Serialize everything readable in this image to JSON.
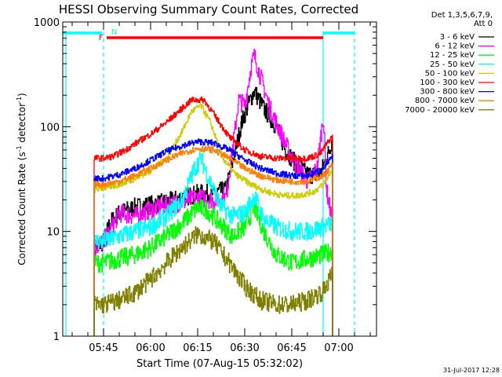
{
  "chart_data": {
    "type": "line",
    "title": "HESSI Observing Summary Count Rates, Corrected",
    "xlabel": "Start Time (07-Aug-15 05:32:02)",
    "ylabel_main": "Corrected Count Rate (s",
    "ylabel_sup1": "-1",
    "ylabel_mid": " detector",
    "ylabel_sup2": "-1",
    "ylabel_end": ")",
    "ylim": [
      1,
      1000
    ],
    "yscale": "log",
    "xlim": [
      "05:32",
      "07:12"
    ],
    "x_ticks": [
      "05:45",
      "06:00",
      "06:15",
      "06:30",
      "06:45",
      "07:00"
    ],
    "y_ticks": [
      "1",
      "10",
      "100",
      "1000"
    ],
    "legend_header": [
      "Det 1,3,5,6,7,9,",
      "Att 0"
    ],
    "timestamp": "31-Jul-2017 12:28",
    "flags": [
      {
        "label": "N",
        "color": "#00ffff",
        "segments": [
          [
            "05:32",
            "05:44:30"
          ],
          [
            "06:55",
            "07:05"
          ]
        ]
      },
      {
        "label": "F",
        "color": "#ff0000",
        "segments": [
          [
            "05:46",
            "06:55"
          ]
        ]
      }
    ],
    "vlines": [
      {
        "x": "05:33",
        "color": "#00ffff",
        "style": "solid"
      },
      {
        "x": "05:45",
        "color": "#00ffff",
        "style": "dashed"
      },
      {
        "x": "06:55",
        "color": "#00ffff",
        "style": "solid"
      },
      {
        "x": "07:05",
        "color": "#00ffff",
        "style": "dashed"
      }
    ],
    "time_range": [
      "05:42",
      "06:58"
    ],
    "series": [
      {
        "name": "3 - 6 keV",
        "color": "#000000",
        "points": [
          [
            "05:42",
            7
          ],
          [
            "05:45",
            8
          ],
          [
            "05:47",
            12
          ],
          [
            "05:50",
            15
          ],
          [
            "05:55",
            17
          ],
          [
            "06:00",
            18
          ],
          [
            "06:05",
            19
          ],
          [
            "06:10",
            21
          ],
          [
            "06:15",
            23
          ],
          [
            "06:20",
            23
          ],
          [
            "06:24",
            25
          ],
          [
            "06:27",
            60
          ],
          [
            "06:29",
            110
          ],
          [
            "06:31",
            160
          ],
          [
            "06:33",
            220
          ],
          [
            "06:36",
            150
          ],
          [
            "06:40",
            100
          ],
          [
            "06:43",
            60
          ],
          [
            "06:46",
            45
          ],
          [
            "06:50",
            35
          ],
          [
            "06:54",
            35
          ],
          [
            "06:57",
            60
          ],
          [
            "06:58",
            80
          ]
        ]
      },
      {
        "name": "6 - 12 keV",
        "color": "#ff00ff",
        "points": [
          [
            "05:42",
            7
          ],
          [
            "05:45",
            8
          ],
          [
            "05:47",
            10
          ],
          [
            "05:50",
            15
          ],
          [
            "05:55",
            14
          ],
          [
            "06:00",
            16
          ],
          [
            "06:05",
            18
          ],
          [
            "06:10",
            19
          ],
          [
            "06:15",
            21
          ],
          [
            "06:20",
            20
          ],
          [
            "06:24",
            21
          ],
          [
            "06:27",
            100
          ],
          [
            "06:28",
            180
          ],
          [
            "06:30",
            160
          ],
          [
            "06:32",
            380
          ],
          [
            "06:33",
            480
          ],
          [
            "06:35",
            300
          ],
          [
            "06:38",
            150
          ],
          [
            "06:42",
            80
          ],
          [
            "06:45",
            50
          ],
          [
            "06:50",
            30
          ],
          [
            "06:53",
            40
          ],
          [
            "06:55",
            130
          ],
          [
            "06:56",
            25
          ],
          [
            "06:58",
            12
          ]
        ]
      },
      {
        "name": "12 - 25 keV",
        "color": "#00ff00",
        "points": [
          [
            "05:42",
            5
          ],
          [
            "05:45",
            5
          ],
          [
            "05:50",
            5.5
          ],
          [
            "05:55",
            6
          ],
          [
            "06:00",
            7
          ],
          [
            "06:05",
            9
          ],
          [
            "06:10",
            12
          ],
          [
            "06:15",
            17
          ],
          [
            "06:18",
            16
          ],
          [
            "06:22",
            12
          ],
          [
            "06:26",
            9
          ],
          [
            "06:30",
            11
          ],
          [
            "06:33",
            17
          ],
          [
            "06:36",
            10
          ],
          [
            "06:40",
            6
          ],
          [
            "06:45",
            5
          ],
          [
            "06:50",
            5.5
          ],
          [
            "06:55",
            6
          ],
          [
            "06:58",
            6.5
          ]
        ]
      },
      {
        "name": "25 - 50 keV",
        "color": "#00ffff",
        "points": [
          [
            "05:42",
            8
          ],
          [
            "05:45",
            8
          ],
          [
            "05:50",
            9
          ],
          [
            "05:55",
            10
          ],
          [
            "06:00",
            11
          ],
          [
            "06:05",
            14
          ],
          [
            "06:10",
            20
          ],
          [
            "06:14",
            40
          ],
          [
            "06:16",
            50
          ],
          [
            "06:18",
            35
          ],
          [
            "06:22",
            18
          ],
          [
            "06:26",
            14
          ],
          [
            "06:30",
            15
          ],
          [
            "06:33",
            22
          ],
          [
            "06:36",
            13
          ],
          [
            "06:40",
            11
          ],
          [
            "06:45",
            10
          ],
          [
            "06:50",
            10
          ],
          [
            "06:55",
            11
          ],
          [
            "06:58",
            12
          ]
        ]
      },
      {
        "name": "50 - 100 keV",
        "color": "#cccc00",
        "points": [
          [
            "05:42",
            25
          ],
          [
            "05:45",
            26
          ],
          [
            "05:50",
            28
          ],
          [
            "05:55",
            32
          ],
          [
            "06:00",
            38
          ],
          [
            "06:05",
            50
          ],
          [
            "06:10",
            90
          ],
          [
            "06:13",
            140
          ],
          [
            "06:16",
            160
          ],
          [
            "06:19",
            110
          ],
          [
            "06:23",
            50
          ],
          [
            "06:27",
            35
          ],
          [
            "06:32",
            28
          ],
          [
            "06:37",
            24
          ],
          [
            "06:42",
            22
          ],
          [
            "06:47",
            22
          ],
          [
            "06:52",
            24
          ],
          [
            "06:55",
            28
          ],
          [
            "06:58",
            40
          ]
        ]
      },
      {
        "name": "100 - 300 keV",
        "color": "#ff0000",
        "points": [
          [
            "05:42",
            50
          ],
          [
            "05:45",
            50
          ],
          [
            "05:48",
            52
          ],
          [
            "05:52",
            60
          ],
          [
            "05:56",
            72
          ],
          [
            "06:00",
            85
          ],
          [
            "06:05",
            110
          ],
          [
            "06:10",
            150
          ],
          [
            "06:13",
            180
          ],
          [
            "06:17",
            180
          ],
          [
            "06:21",
            120
          ],
          [
            "06:25",
            80
          ],
          [
            "06:30",
            60
          ],
          [
            "06:35",
            52
          ],
          [
            "06:40",
            50
          ],
          [
            "06:45",
            50
          ],
          [
            "06:50",
            50
          ],
          [
            "06:54",
            55
          ],
          [
            "06:57",
            75
          ],
          [
            "06:58",
            80
          ]
        ]
      },
      {
        "name": "300 - 800 keV",
        "color": "#0000ff",
        "points": [
          [
            "05:42",
            32
          ],
          [
            "05:45",
            32
          ],
          [
            "05:50",
            35
          ],
          [
            "05:55",
            40
          ],
          [
            "06:00",
            48
          ],
          [
            "06:05",
            58
          ],
          [
            "06:10",
            66
          ],
          [
            "06:15",
            72
          ],
          [
            "06:20",
            70
          ],
          [
            "06:25",
            60
          ],
          [
            "06:30",
            48
          ],
          [
            "06:35",
            40
          ],
          [
            "06:40",
            36
          ],
          [
            "06:45",
            34
          ],
          [
            "06:50",
            34
          ],
          [
            "06:55",
            40
          ],
          [
            "06:58",
            52
          ]
        ]
      },
      {
        "name": "800 - 7000 keV",
        "color": "#ff8000",
        "points": [
          [
            "05:42",
            28
          ],
          [
            "05:45",
            28
          ],
          [
            "05:50",
            30
          ],
          [
            "05:55",
            34
          ],
          [
            "06:00",
            40
          ],
          [
            "06:05",
            48
          ],
          [
            "06:10",
            56
          ],
          [
            "06:15",
            62
          ],
          [
            "06:20",
            60
          ],
          [
            "06:25",
            50
          ],
          [
            "06:30",
            40
          ],
          [
            "06:35",
            34
          ],
          [
            "06:40",
            31
          ],
          [
            "06:45",
            30
          ],
          [
            "06:50",
            30
          ],
          [
            "06:55",
            34
          ],
          [
            "06:58",
            44
          ]
        ]
      },
      {
        "name": "7000 - 20000 keV",
        "color": "#808000",
        "points": [
          [
            "05:42",
            2
          ],
          [
            "05:45",
            2
          ],
          [
            "05:50",
            2.2
          ],
          [
            "05:55",
            2.6
          ],
          [
            "06:00",
            3.5
          ],
          [
            "06:05",
            5
          ],
          [
            "06:10",
            7
          ],
          [
            "06:15",
            9.5
          ],
          [
            "06:20",
            8
          ],
          [
            "06:25",
            5
          ],
          [
            "06:30",
            3
          ],
          [
            "06:35",
            2.2
          ],
          [
            "06:40",
            2
          ],
          [
            "06:45",
            2
          ],
          [
            "06:50",
            2.2
          ],
          [
            "06:55",
            2.7
          ],
          [
            "06:58",
            4
          ]
        ]
      }
    ]
  }
}
